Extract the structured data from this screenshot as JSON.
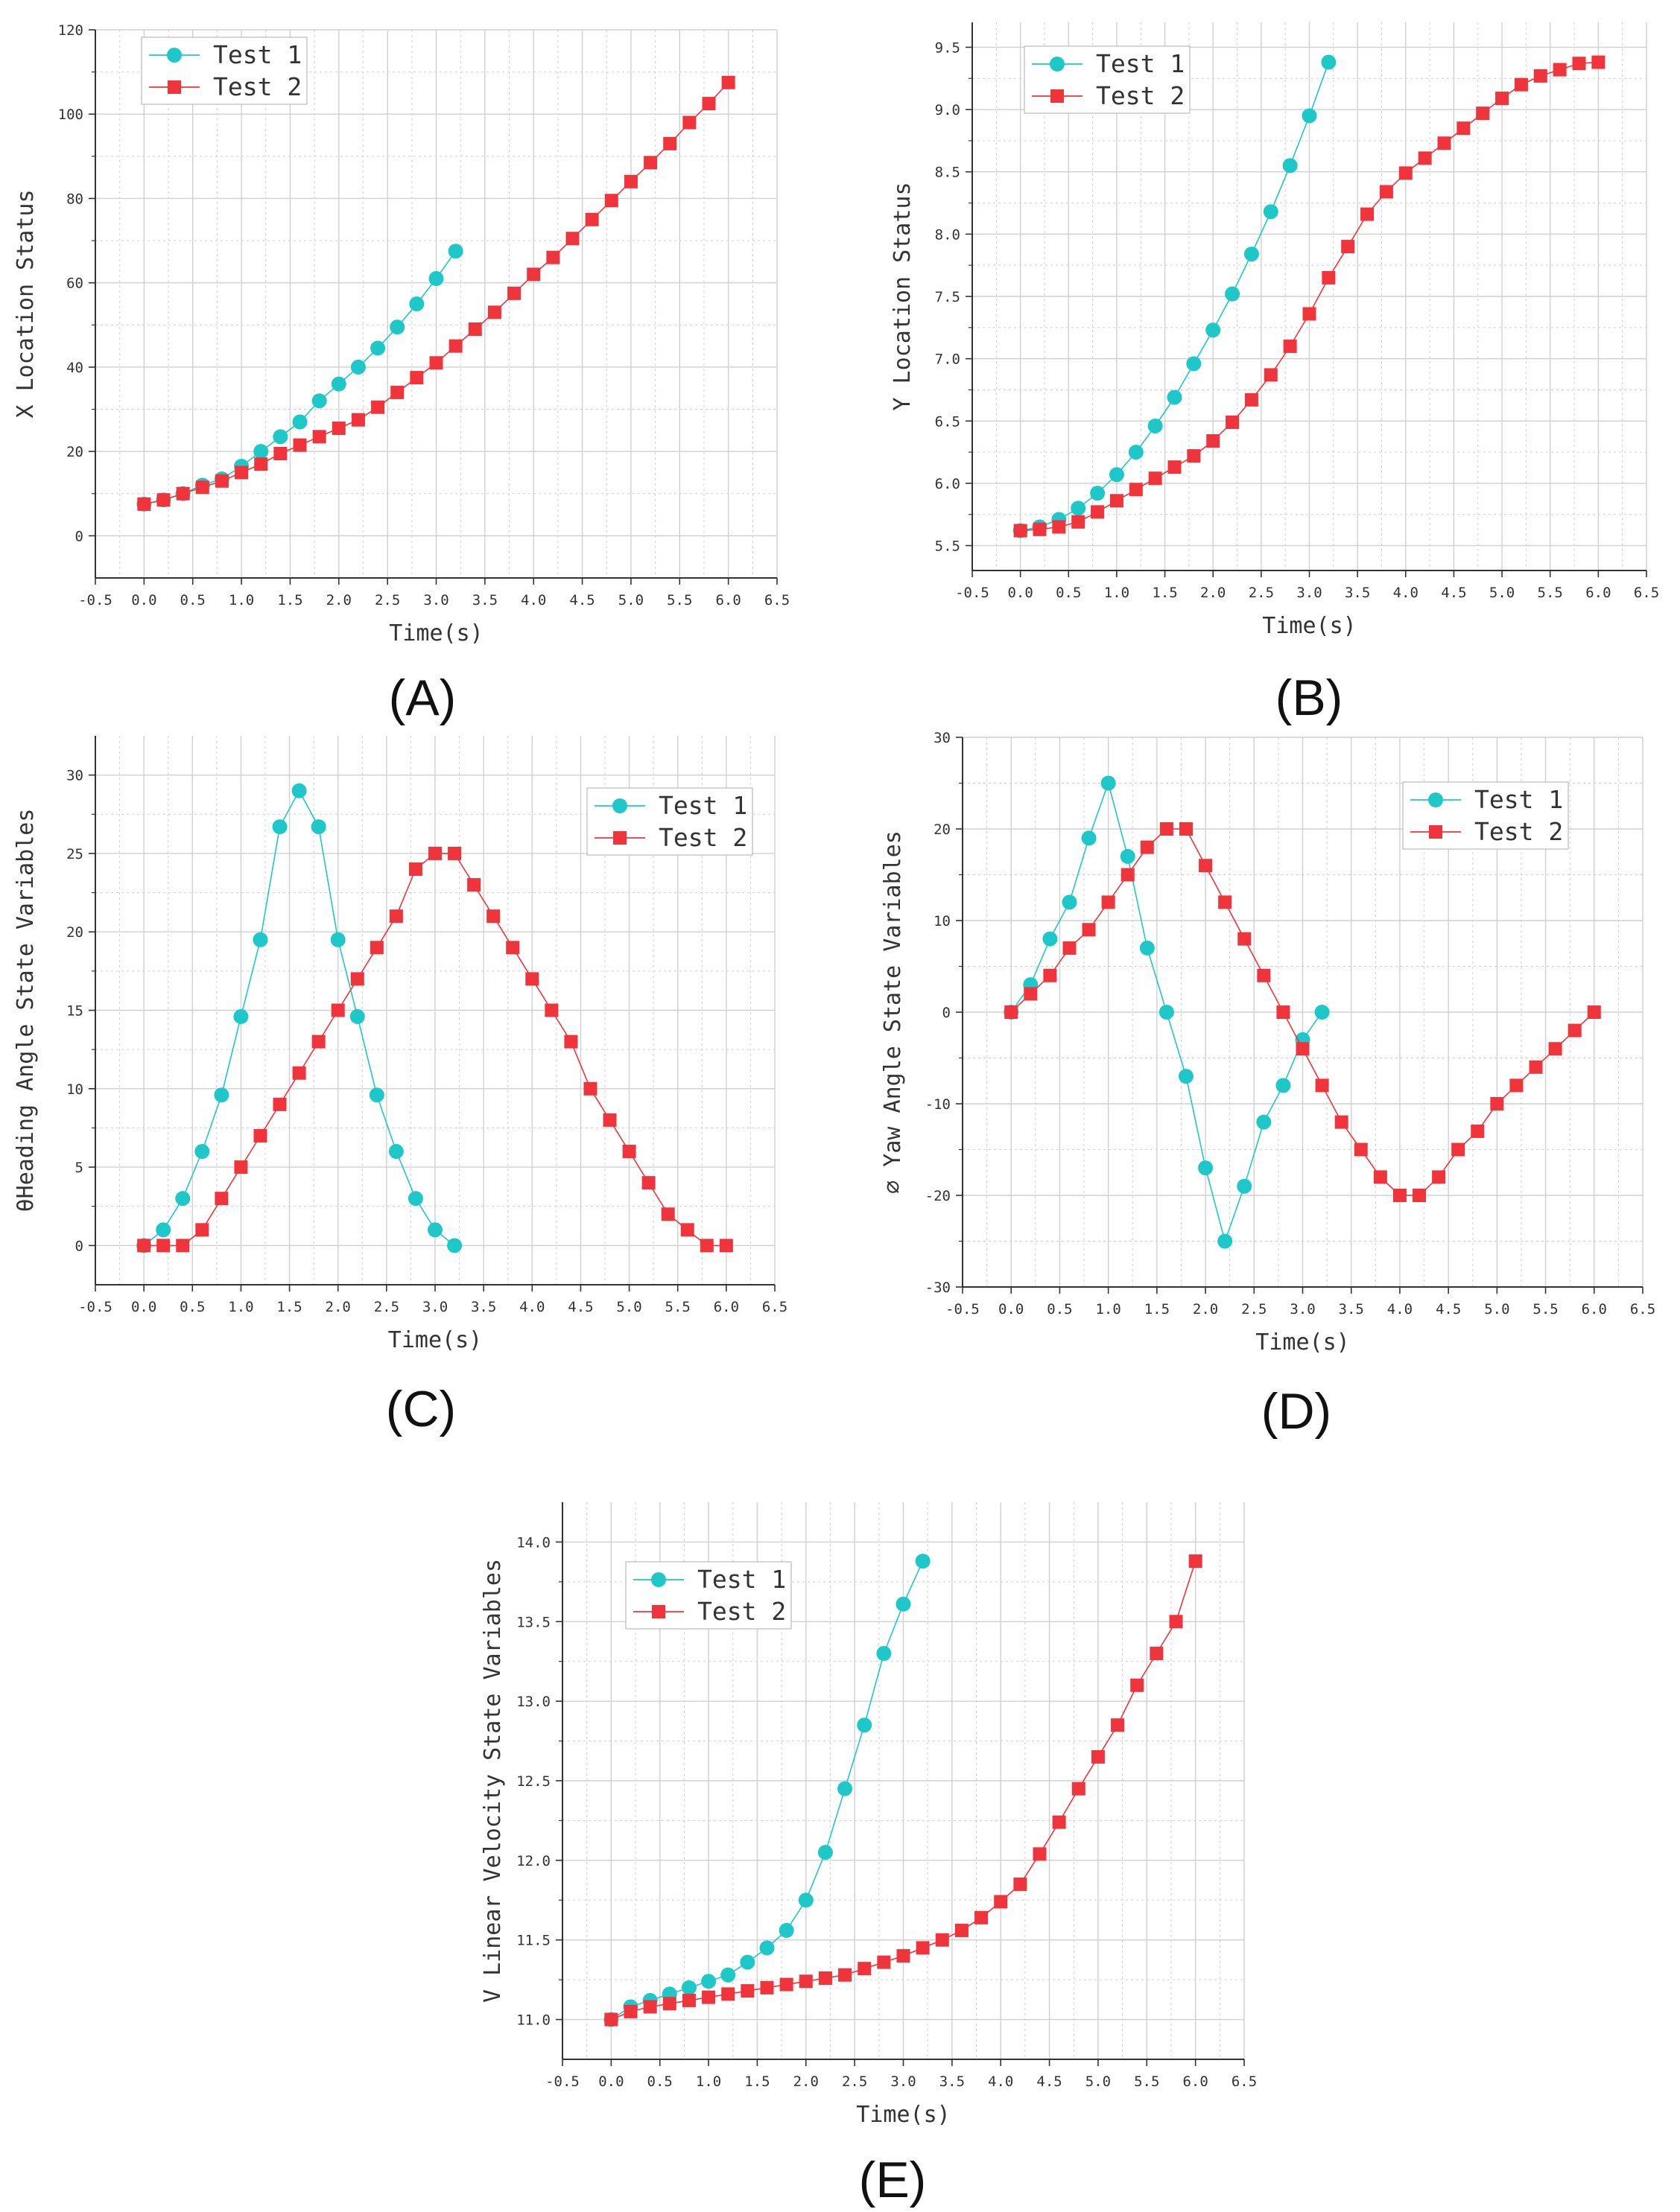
{
  "colors": {
    "test1": "#1ec8c8",
    "test2": "#f0343c",
    "grid": "#d0d0d0",
    "axis": "#333333"
  },
  "chart_data": [
    {
      "panel": "(A)",
      "type": "line",
      "title": "",
      "xlabel": "Time(s)",
      "ylabel": "X Location Status",
      "xlim": [
        -0.5,
        6.5
      ],
      "ylim": [
        -10,
        120
      ],
      "xticks": [
        -0.5,
        0.0,
        0.5,
        1.0,
        1.5,
        2.0,
        2.5,
        3.0,
        3.5,
        4.0,
        4.5,
        5.0,
        5.5,
        6.0,
        6.5
      ],
      "yticks": [
        0,
        20,
        40,
        60,
        80,
        100,
        120
      ],
      "ydecimals": 0,
      "legend": "top-left",
      "series": [
        {
          "name": "Test 1",
          "marker": "circle",
          "x": [
            0,
            0.2,
            0.4,
            0.6,
            0.8,
            1.0,
            1.2,
            1.4,
            1.6,
            1.8,
            2.0,
            2.2,
            2.4,
            2.6,
            2.8,
            3.0,
            3.2
          ],
          "y": [
            7.5,
            8.5,
            10,
            12,
            13.5,
            16.5,
            20,
            23.5,
            27,
            32,
            36,
            40,
            44.5,
            49.5,
            55,
            61,
            67.5
          ]
        },
        {
          "name": "Test 2",
          "marker": "square",
          "x": [
            0,
            0.2,
            0.4,
            0.6,
            0.8,
            1.0,
            1.2,
            1.4,
            1.6,
            1.8,
            2.0,
            2.2,
            2.4,
            2.6,
            2.8,
            3.0,
            3.2,
            3.4,
            3.6,
            3.8,
            4.0,
            4.2,
            4.4,
            4.6,
            4.8,
            5.0,
            5.2,
            5.4,
            5.6,
            5.8,
            6.0
          ],
          "y": [
            7.5,
            8.5,
            10,
            11.5,
            13,
            15,
            17,
            19.5,
            21.5,
            23.5,
            25.5,
            27.5,
            30.5,
            34,
            37.5,
            41,
            45,
            49,
            53,
            57.5,
            62,
            66,
            70.5,
            75,
            79.5,
            84,
            88.5,
            93,
            98,
            102.5,
            107.5
          ]
        }
      ]
    },
    {
      "panel": "(B)",
      "type": "line",
      "title": "",
      "xlabel": "Time(s)",
      "ylabel": "Y Location Status",
      "xlim": [
        -0.5,
        6.5
      ],
      "ylim": [
        5.3,
        9.7
      ],
      "xticks": [
        -0.5,
        0.0,
        0.5,
        1.0,
        1.5,
        2.0,
        2.5,
        3.0,
        3.5,
        4.0,
        4.5,
        5.0,
        5.5,
        6.0,
        6.5
      ],
      "yticks": [
        5.5,
        6.0,
        6.5,
        7.0,
        7.5,
        8.0,
        8.5,
        9.0,
        9.5
      ],
      "ydecimals": 1,
      "legend": "top-left",
      "series": [
        {
          "name": "Test 1",
          "marker": "circle",
          "x": [
            0,
            0.2,
            0.4,
            0.6,
            0.8,
            1.0,
            1.2,
            1.4,
            1.6,
            1.8,
            2.0,
            2.2,
            2.4,
            2.6,
            2.8,
            3.0,
            3.2
          ],
          "y": [
            5.62,
            5.65,
            5.71,
            5.8,
            5.92,
            6.07,
            6.25,
            6.46,
            6.69,
            6.96,
            7.23,
            7.52,
            7.84,
            8.18,
            8.55,
            8.95,
            9.38
          ]
        },
        {
          "name": "Test 2",
          "marker": "square",
          "x": [
            0,
            0.2,
            0.4,
            0.6,
            0.8,
            1.0,
            1.2,
            1.4,
            1.6,
            1.8,
            2.0,
            2.2,
            2.4,
            2.6,
            2.8,
            3.0,
            3.2,
            3.4,
            3.6,
            3.8,
            4.0,
            4.2,
            4.4,
            4.6,
            4.8,
            5.0,
            5.2,
            5.4,
            5.6,
            5.8,
            6.0
          ],
          "y": [
            5.62,
            5.63,
            5.65,
            5.69,
            5.77,
            5.86,
            5.95,
            6.04,
            6.13,
            6.22,
            6.34,
            6.49,
            6.67,
            6.87,
            7.1,
            7.36,
            7.65,
            7.9,
            8.16,
            8.34,
            8.49,
            8.61,
            8.73,
            8.85,
            8.97,
            9.09,
            9.2,
            9.27,
            9.32,
            9.37,
            9.38
          ]
        }
      ]
    },
    {
      "panel": "(C)",
      "type": "line",
      "title": "",
      "xlabel": "Time(s)",
      "ylabel": "θHeading Angle State Variables",
      "xlim": [
        -0.5,
        6.5
      ],
      "ylim": [
        -2.5,
        32.5
      ],
      "xticks": [
        -0.5,
        0.0,
        0.5,
        1.0,
        1.5,
        2.0,
        2.5,
        3.0,
        3.5,
        4.0,
        4.5,
        5.0,
        5.5,
        6.0,
        6.5
      ],
      "yticks": [
        0,
        5,
        10,
        15,
        20,
        25,
        30
      ],
      "ydecimals": 0,
      "legend": "top-right",
      "series": [
        {
          "name": "Test 1",
          "marker": "circle",
          "x": [
            0,
            0.2,
            0.4,
            0.6,
            0.8,
            1.0,
            1.2,
            1.4,
            1.6,
            1.8,
            2.0,
            2.2,
            2.4,
            2.6,
            2.8,
            3.0,
            3.2
          ],
          "y": [
            0,
            1,
            3,
            6,
            9.6,
            14.6,
            19.5,
            26.7,
            29,
            26.7,
            19.5,
            14.6,
            9.6,
            6,
            3,
            1,
            0
          ]
        },
        {
          "name": "Test 2",
          "marker": "square",
          "x": [
            0,
            0.2,
            0.4,
            0.6,
            0.8,
            1.0,
            1.2,
            1.4,
            1.6,
            1.8,
            2.0,
            2.2,
            2.4,
            2.6,
            2.8,
            3.0,
            3.2,
            3.4,
            3.6,
            3.8,
            4.0,
            4.2,
            4.4,
            4.6,
            4.8,
            5.0,
            5.2,
            5.4,
            5.6,
            5.8,
            6.0
          ],
          "y": [
            0,
            0,
            0,
            1,
            3,
            5,
            7,
            9,
            11,
            13,
            15,
            17,
            19,
            21,
            24,
            25,
            25,
            23,
            21,
            19,
            17,
            15,
            13,
            10,
            8,
            6,
            4,
            2,
            1,
            0,
            0
          ]
        }
      ]
    },
    {
      "panel": "(D)",
      "type": "line",
      "title": "",
      "xlabel": "Time(s)",
      "ylabel": "∅ Yaw Angle State Variables",
      "xlim": [
        -0.5,
        6.5
      ],
      "ylim": [
        -30,
        30
      ],
      "xticks": [
        -0.5,
        0.0,
        0.5,
        1.0,
        1.5,
        2.0,
        2.5,
        3.0,
        3.5,
        4.0,
        4.5,
        5.0,
        5.5,
        6.0,
        6.5
      ],
      "yticks": [
        -30,
        -20,
        -10,
        0,
        10,
        20,
        30
      ],
      "ydecimals": 0,
      "legend": "top-right",
      "series": [
        {
          "name": "Test 1",
          "marker": "circle",
          "x": [
            0,
            0.2,
            0.4,
            0.6,
            0.8,
            1.0,
            1.2,
            1.4,
            1.6,
            1.8,
            2.0,
            2.2,
            2.4,
            2.6,
            2.8,
            3.0,
            3.2
          ],
          "y": [
            0,
            3,
            8,
            12,
            19,
            25,
            17,
            7,
            0,
            -7,
            -17,
            -25,
            -19,
            -12,
            -8,
            -3,
            0
          ]
        },
        {
          "name": "Test 2",
          "marker": "square",
          "x": [
            0,
            0.2,
            0.4,
            0.6,
            0.8,
            1.0,
            1.2,
            1.4,
            1.6,
            1.8,
            2.0,
            2.2,
            2.4,
            2.6,
            2.8,
            3.0,
            3.2,
            3.4,
            3.6,
            3.8,
            4.0,
            4.2,
            4.4,
            4.6,
            4.8,
            5.0,
            5.2,
            5.4,
            5.6,
            5.8,
            6.0
          ],
          "y": [
            0,
            2,
            4,
            7,
            9,
            12,
            15,
            18,
            20,
            20,
            16,
            12,
            8,
            4,
            0,
            -4,
            -8,
            -12,
            -15,
            -18,
            -20,
            -20,
            -18,
            -15,
            -13,
            -10,
            -8,
            -6,
            -4,
            -2,
            0
          ]
        }
      ]
    },
    {
      "panel": "(E)",
      "type": "line",
      "title": "",
      "xlabel": "Time(s)",
      "ylabel": "V Linear Velocity State Variables",
      "xlim": [
        -0.5,
        6.5
      ],
      "ylim": [
        10.75,
        14.25
      ],
      "xticks": [
        -0.5,
        0.0,
        0.5,
        1.0,
        1.5,
        2.0,
        2.5,
        3.0,
        3.5,
        4.0,
        4.5,
        5.0,
        5.5,
        6.0,
        6.5
      ],
      "yticks": [
        11.0,
        11.5,
        12.0,
        12.5,
        13.0,
        13.5,
        14.0
      ],
      "ydecimals": 1,
      "legend": "top-left",
      "series": [
        {
          "name": "Test 1",
          "marker": "circle",
          "x": [
            0,
            0.2,
            0.4,
            0.6,
            0.8,
            1.0,
            1.2,
            1.4,
            1.6,
            1.8,
            2.0,
            2.2,
            2.4,
            2.6,
            2.8,
            3.0,
            3.2
          ],
          "y": [
            11.0,
            11.08,
            11.12,
            11.16,
            11.2,
            11.24,
            11.28,
            11.36,
            11.45,
            11.56,
            11.75,
            12.05,
            12.45,
            12.85,
            13.3,
            13.61,
            13.88
          ]
        },
        {
          "name": "Test 2",
          "marker": "square",
          "x": [
            0,
            0.2,
            0.4,
            0.6,
            0.8,
            1.0,
            1.2,
            1.4,
            1.6,
            1.8,
            2.0,
            2.2,
            2.4,
            2.6,
            2.8,
            3.0,
            3.2,
            3.4,
            3.6,
            3.8,
            4.0,
            4.2,
            4.4,
            4.6,
            4.8,
            5.0,
            5.2,
            5.4,
            5.6,
            5.8,
            6.0
          ],
          "y": [
            11.0,
            11.05,
            11.08,
            11.1,
            11.12,
            11.14,
            11.16,
            11.18,
            11.2,
            11.22,
            11.24,
            11.26,
            11.28,
            11.32,
            11.36,
            11.4,
            11.45,
            11.5,
            11.56,
            11.64,
            11.74,
            11.85,
            12.04,
            12.24,
            12.45,
            12.65,
            12.85,
            13.1,
            13.3,
            13.5,
            13.88
          ]
        }
      ]
    }
  ]
}
